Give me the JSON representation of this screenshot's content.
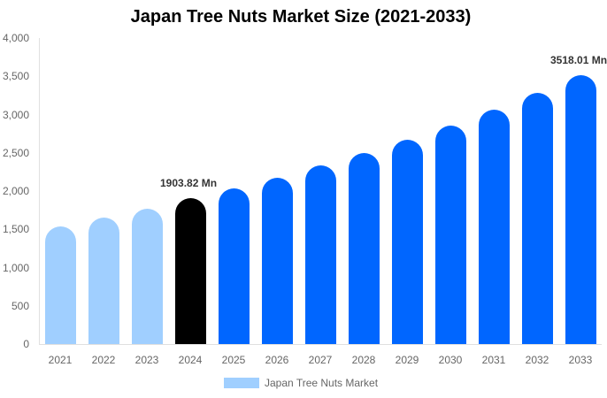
{
  "chart_data": {
    "type": "bar",
    "title": "Japan Tree Nuts Market Size (2021-2033)",
    "xlabel": "",
    "ylabel": "",
    "ylim": [
      0,
      4000
    ],
    "yticks": [
      "0",
      "500",
      "1,000",
      "1,500",
      "2,000",
      "2,500",
      "3,000",
      "3,500",
      "4,000"
    ],
    "categories": [
      "2021",
      "2022",
      "2023",
      "2024",
      "2025",
      "2026",
      "2027",
      "2028",
      "2029",
      "2030",
      "2031",
      "2032",
      "2033"
    ],
    "series": [
      {
        "name": "Japan Tree Nuts Market",
        "values": [
          1538,
          1653,
          1769,
          1903.82,
          2035,
          2173,
          2335,
          2497,
          2671,
          2855,
          3064,
          3283,
          3518.01
        ]
      }
    ],
    "bar_colors": [
      "#a0cfff",
      "#a0cfff",
      "#a0cfff",
      "#000000",
      "#0066ff",
      "#0066ff",
      "#0066ff",
      "#0066ff",
      "#0066ff",
      "#0066ff",
      "#0066ff",
      "#0066ff",
      "#0066ff"
    ],
    "annotations": [
      {
        "category": "2024",
        "text": "1903.82 Mn"
      },
      {
        "category": "2033",
        "text": "3518.01 Mn"
      }
    ],
    "legend": {
      "position": "bottom",
      "entries": [
        "Japan Tree Nuts Market"
      ],
      "color": "#a0cfff"
    },
    "grid": false
  }
}
